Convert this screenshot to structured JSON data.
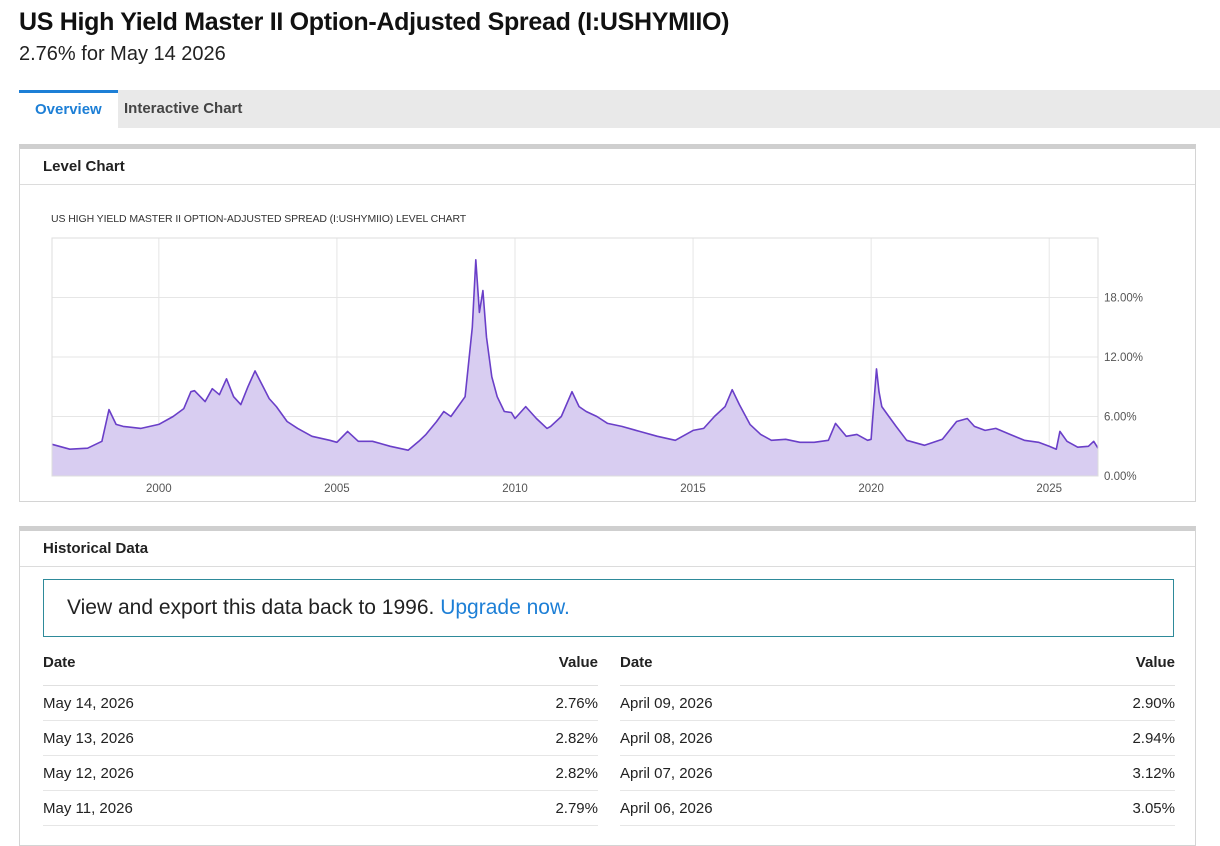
{
  "header": {
    "title": "US High Yield Master II Option-Adjusted Spread (I:USHYMIIO)",
    "subtitle": "2.76% for May 14 2026"
  },
  "tabs": [
    {
      "label": "Overview",
      "active": true
    },
    {
      "label": "Interactive Chart",
      "active": false
    }
  ],
  "level_chart": {
    "panel_title": "Level Chart",
    "accent_color": "#6a3fc8",
    "fill_color": "#d8cdf1"
  },
  "chart_data": {
    "type": "area",
    "title": "US HIGH YIELD MASTER II OPTION-ADJUSTED SPREAD (I:USHYMIIO) LEVEL CHART",
    "xlabel": "",
    "ylabel": "",
    "xlim": [
      1997.0,
      2026.37
    ],
    "ylim": [
      0,
      24
    ],
    "x_ticks": [
      "2000",
      "2005",
      "2010",
      "2015",
      "2020",
      "2025"
    ],
    "y_ticks": [
      "0.00%",
      "6.00%",
      "12.00%",
      "18.00%"
    ],
    "grid": true,
    "legend": "none",
    "series": [
      {
        "x": [
          1997.0,
          1997.5,
          1998.0,
          1998.4,
          1998.6,
          1998.8,
          1999.0,
          1999.5,
          2000.0,
          2000.4,
          2000.7,
          2000.9,
          2001.0,
          2001.3,
          2001.5,
          2001.7,
          2001.9,
          2002.1,
          2002.3,
          2002.5,
          2002.7,
          2002.9,
          2003.1,
          2003.3,
          2003.6,
          2003.9,
          2004.3,
          2004.8,
          2005.0,
          2005.3,
          2005.6,
          2006.0,
          2006.5,
          2007.0,
          2007.3,
          2007.5,
          2007.8,
          2008.0,
          2008.2,
          2008.4,
          2008.6,
          2008.8,
          2008.9,
          2009.0,
          2009.1,
          2009.2,
          2009.35,
          2009.5,
          2009.7,
          2009.9,
          2010.0,
          2010.3,
          2010.6,
          2010.9,
          2011.0,
          2011.3,
          2011.6,
          2011.8,
          2012.0,
          2012.3,
          2012.6,
          2013.0,
          2013.5,
          2014.0,
          2014.5,
          2014.8,
          2015.0,
          2015.3,
          2015.6,
          2015.9,
          2016.1,
          2016.3,
          2016.6,
          2016.9,
          2017.2,
          2017.6,
          2018.0,
          2018.4,
          2018.8,
          2019.0,
          2019.3,
          2019.6,
          2019.9,
          2020.0,
          2020.15,
          2020.22,
          2020.3,
          2020.5,
          2020.7,
          2021.0,
          2021.5,
          2022.0,
          2022.4,
          2022.7,
          2022.9,
          2023.2,
          2023.5,
          2023.9,
          2024.3,
          2024.7,
          2025.0,
          2025.2,
          2025.3,
          2025.5,
          2025.8,
          2026.1,
          2026.25,
          2026.37
        ],
        "y": [
          3.2,
          2.7,
          2.8,
          3.5,
          6.7,
          5.2,
          5.0,
          4.8,
          5.2,
          6.0,
          6.8,
          8.5,
          8.6,
          7.5,
          8.8,
          8.2,
          9.8,
          8.0,
          7.2,
          9.0,
          10.6,
          9.2,
          7.8,
          7.0,
          5.5,
          4.8,
          4.0,
          3.6,
          3.4,
          4.5,
          3.5,
          3.5,
          3.0,
          2.6,
          3.5,
          4.2,
          5.5,
          6.5,
          6.0,
          7.0,
          8.0,
          15.0,
          21.8,
          16.5,
          18.7,
          14.0,
          10.0,
          8.0,
          6.5,
          6.4,
          5.8,
          7.0,
          5.8,
          4.8,
          5.0,
          6.0,
          8.5,
          7.0,
          6.5,
          6.0,
          5.3,
          5.0,
          4.5,
          4.0,
          3.6,
          4.2,
          4.6,
          4.8,
          6.0,
          7.0,
          8.7,
          7.2,
          5.2,
          4.2,
          3.6,
          3.7,
          3.4,
          3.4,
          3.6,
          5.3,
          4.0,
          4.2,
          3.6,
          3.7,
          10.8,
          8.5,
          7.0,
          6.0,
          5.0,
          3.6,
          3.1,
          3.7,
          5.5,
          5.8,
          5.0,
          4.6,
          4.8,
          4.2,
          3.6,
          3.4,
          3.0,
          2.7,
          4.5,
          3.5,
          2.9,
          3.0,
          3.5,
          2.8
        ]
      }
    ]
  },
  "historical": {
    "panel_title": "Historical Data",
    "promo_text": "View and export this data back to 1996.",
    "promo_link": "Upgrade now.",
    "col_date": "Date",
    "col_value": "Value",
    "left_rows": [
      {
        "date": "May 14, 2026",
        "value": "2.76%"
      },
      {
        "date": "May 13, 2026",
        "value": "2.82%"
      },
      {
        "date": "May 12, 2026",
        "value": "2.82%"
      },
      {
        "date": "May 11, 2026",
        "value": "2.79%"
      }
    ],
    "right_rows": [
      {
        "date": "April 09, 2026",
        "value": "2.90%"
      },
      {
        "date": "April 08, 2026",
        "value": "2.94%"
      },
      {
        "date": "April 07, 2026",
        "value": "3.12%"
      },
      {
        "date": "April 06, 2026",
        "value": "3.05%"
      }
    ]
  }
}
